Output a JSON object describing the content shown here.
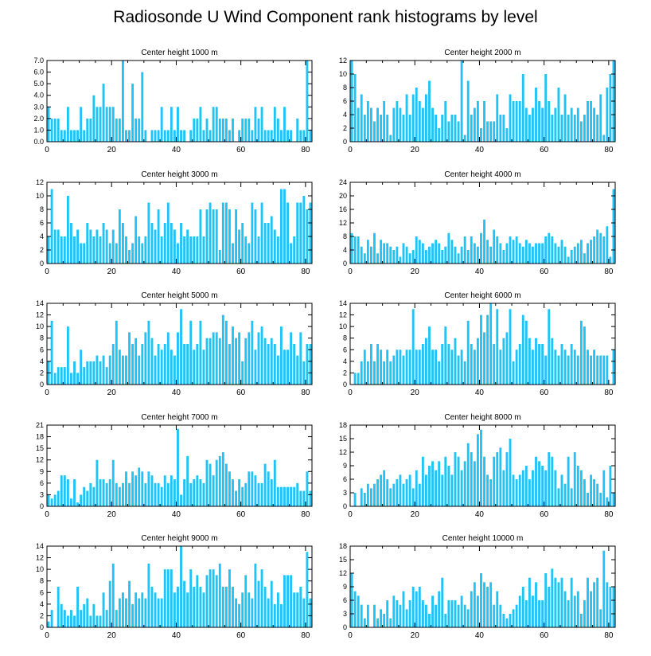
{
  "title": "Radiosonde U Wind Component rank histograms by level",
  "colors": {
    "bar": "#1ec3f7",
    "axis": "#000000"
  },
  "chart_data": [
    {
      "type": "bar",
      "title": "Center height 1000 m",
      "ylim": [
        0,
        7
      ],
      "yticks": [
        "0.0",
        "1.0",
        "2.0",
        "3.0",
        "4.0",
        "5.0",
        "6.0",
        "7.0"
      ],
      "yaxis_side": "left",
      "xlim": [
        0,
        82
      ],
      "xticks": [
        0,
        20,
        40,
        60,
        80
      ],
      "values": [
        3,
        2,
        2,
        2,
        1,
        1,
        3,
        1,
        1,
        1,
        3,
        1,
        2,
        2,
        4,
        3,
        3,
        5,
        3,
        3,
        3,
        2,
        2,
        7,
        1,
        1,
        5,
        2,
        2,
        6,
        1,
        0,
        1,
        1,
        1,
        3,
        1,
        1,
        3,
        1,
        3,
        1,
        1,
        0,
        1,
        2,
        2,
        3,
        1,
        2,
        1,
        3,
        3,
        2,
        2,
        2,
        1,
        2,
        0,
        1,
        2,
        2,
        2,
        1,
        3,
        2,
        3,
        1,
        1,
        1,
        3,
        2,
        1,
        3,
        1,
        1,
        0,
        2,
        1,
        1,
        7,
        1
      ]
    },
    {
      "type": "bar",
      "title": "Center height 2000 m",
      "ylim": [
        0,
        12
      ],
      "yticks": [
        "0",
        "2",
        "4",
        "6",
        "8",
        "10",
        "12"
      ],
      "yaxis_side": "right",
      "xlim": [
        0,
        82
      ],
      "xticks": [
        0,
        20,
        40,
        60,
        80
      ],
      "values": [
        12,
        10,
        5,
        7,
        4,
        6,
        5,
        3,
        5,
        4,
        6,
        4,
        1,
        5,
        6,
        5,
        4,
        7,
        4,
        7,
        8,
        6,
        5,
        7,
        9,
        5,
        4,
        2,
        4,
        6,
        3,
        4,
        4,
        3,
        12,
        1,
        9,
        4,
        5,
        6,
        2,
        6,
        3,
        3,
        3,
        7,
        4,
        4,
        2,
        7,
        6,
        6,
        6,
        10,
        5,
        4,
        5,
        8,
        6,
        5,
        10,
        6,
        4,
        5,
        8,
        4,
        7,
        4,
        5,
        4,
        5,
        3,
        4,
        6,
        6,
        5,
        4,
        7,
        1,
        8,
        10,
        12
      ]
    },
    {
      "type": "bar",
      "title": "Center height 3000 m",
      "ylim": [
        0,
        12
      ],
      "yticks": [
        "0",
        "2",
        "4",
        "6",
        "8",
        "10",
        "12"
      ],
      "yaxis_side": "left",
      "xlim": [
        0,
        82
      ],
      "xticks": [
        0,
        20,
        40,
        60,
        80
      ],
      "values": [
        4,
        11,
        5,
        5,
        4,
        4,
        10,
        6,
        4,
        5,
        3,
        3,
        6,
        5,
        4,
        5,
        4,
        6,
        5,
        3,
        5,
        3,
        8,
        6,
        4,
        2,
        3,
        7,
        4,
        3,
        4,
        9,
        6,
        5,
        8,
        4,
        6,
        9,
        6,
        5,
        3,
        6,
        4,
        5,
        4,
        4,
        4,
        8,
        4,
        8,
        9,
        8,
        8,
        2,
        9,
        9,
        8,
        3,
        8,
        5,
        6,
        4,
        3,
        9,
        8,
        4,
        9,
        6,
        6,
        7,
        5,
        4,
        11,
        11,
        9,
        3,
        4,
        9,
        9,
        10,
        8,
        9
      ]
    },
    {
      "type": "bar",
      "title": "Center height 4000 m",
      "ylim": [
        0,
        24
      ],
      "yticks": [
        "0",
        "4",
        "8",
        "12",
        "16",
        "20",
        "24"
      ],
      "yaxis_side": "right",
      "xlim": [
        0,
        82
      ],
      "xticks": [
        0,
        20,
        40,
        60,
        80
      ],
      "values": [
        9,
        8,
        8,
        5,
        3,
        7,
        5,
        9,
        3,
        7,
        6,
        6,
        5,
        4,
        5,
        2,
        6,
        5,
        3,
        4,
        8,
        7,
        6,
        4,
        5,
        6,
        7,
        6,
        4,
        5,
        9,
        7,
        5,
        3,
        5,
        8,
        4,
        8,
        6,
        5,
        9,
        13,
        7,
        5,
        10,
        8,
        6,
        4,
        6,
        8,
        7,
        8,
        6,
        5,
        7,
        6,
        5,
        6,
        6,
        6,
        8,
        9,
        8,
        6,
        5,
        7,
        5,
        2,
        4,
        5,
        6,
        7,
        3,
        6,
        7,
        8,
        10,
        9,
        8,
        11,
        2,
        22
      ]
    },
    {
      "type": "bar",
      "title": "Center height 5000 m",
      "ylim": [
        0,
        14
      ],
      "yticks": [
        "0",
        "2",
        "4",
        "6",
        "8",
        "10",
        "12",
        "14"
      ],
      "yaxis_side": "left",
      "xlim": [
        0,
        82
      ],
      "xticks": [
        0,
        20,
        40,
        60,
        80
      ],
      "values": [
        4,
        11,
        2,
        3,
        3,
        3,
        10,
        2,
        4,
        2,
        6,
        3,
        4,
        4,
        4,
        5,
        4,
        5,
        3,
        5,
        7,
        11,
        6,
        5,
        5,
        9,
        7,
        8,
        5,
        7,
        9,
        11,
        8,
        5,
        7,
        6,
        7,
        9,
        6,
        5,
        9,
        13,
        7,
        7,
        11,
        6,
        7,
        11,
        6,
        8,
        8,
        9,
        9,
        8,
        12,
        11,
        7,
        10,
        8,
        9,
        4,
        8,
        9,
        11,
        6,
        9,
        10,
        8,
        7,
        8,
        7,
        5,
        10,
        6,
        6,
        9,
        7,
        5,
        9,
        4,
        7,
        7
      ]
    },
    {
      "type": "bar",
      "title": "Center height 6000 m",
      "ylim": [
        0,
        14
      ],
      "yticks": [
        "0",
        "2",
        "4",
        "6",
        "8",
        "10",
        "12",
        "14"
      ],
      "yaxis_side": "right",
      "xlim": [
        0,
        82
      ],
      "xticks": [
        0,
        20,
        40,
        60,
        80
      ],
      "values": [
        0,
        2,
        2,
        4,
        6,
        4,
        7,
        4,
        7,
        6,
        4,
        6,
        4,
        5,
        6,
        6,
        5,
        6,
        6,
        13,
        6,
        6,
        7,
        8,
        10,
        6,
        6,
        4,
        7,
        10,
        7,
        6,
        8,
        5,
        6,
        4,
        11,
        7,
        6,
        8,
        12,
        9,
        12,
        14,
        7,
        13,
        6,
        8,
        9,
        13,
        4,
        6,
        7,
        12,
        11,
        8,
        6,
        8,
        7,
        7,
        5,
        13,
        8,
        6,
        5,
        7,
        6,
        5,
        7,
        6,
        5,
        11,
        10,
        6,
        5,
        6,
        5,
        5,
        5,
        5,
        0,
        6
      ]
    },
    {
      "type": "bar",
      "title": "Center height 7000 m",
      "ylim": [
        0,
        21
      ],
      "yticks": [
        "0",
        "3",
        "6",
        "9",
        "12",
        "15",
        "18",
        "21"
      ],
      "yaxis_side": "left",
      "xlim": [
        0,
        82
      ],
      "xticks": [
        0,
        20,
        40,
        60,
        80
      ],
      "values": [
        3,
        2,
        3,
        4,
        8,
        8,
        7,
        2,
        7,
        1,
        3,
        5,
        4,
        6,
        5,
        12,
        7,
        7,
        6,
        7,
        12,
        6,
        5,
        6,
        9,
        6,
        9,
        8,
        10,
        9,
        6,
        9,
        8,
        6,
        6,
        5,
        8,
        6,
        8,
        7,
        20,
        3,
        7,
        13,
        6,
        7,
        8,
        7,
        6,
        12,
        11,
        8,
        12,
        13,
        14,
        11,
        9,
        7,
        4,
        7,
        5,
        6,
        9,
        9,
        8,
        6,
        6,
        11,
        9,
        7,
        12,
        5,
        5,
        5,
        5,
        5,
        5,
        6,
        4,
        4,
        9,
        4
      ]
    },
    {
      "type": "bar",
      "title": "Center height 8000 m",
      "ylim": [
        0,
        18
      ],
      "yticks": [
        "0",
        "3",
        "6",
        "9",
        "12",
        "15",
        "18"
      ],
      "yaxis_side": "right",
      "xlim": [
        0,
        82
      ],
      "xticks": [
        0,
        20,
        40,
        60,
        80
      ],
      "values": [
        0,
        3,
        0,
        4,
        3,
        5,
        4,
        5,
        6,
        7,
        8,
        6,
        4,
        5,
        6,
        7,
        5,
        6,
        7,
        4,
        8,
        5,
        11,
        7,
        9,
        10,
        8,
        10,
        7,
        11,
        9,
        7,
        12,
        11,
        8,
        10,
        14,
        12,
        10,
        16,
        17,
        11,
        7,
        6,
        11,
        12,
        13,
        8,
        12,
        15,
        7,
        6,
        7,
        8,
        9,
        6,
        8,
        11,
        10,
        9,
        8,
        12,
        11,
        8,
        4,
        7,
        5,
        11,
        4,
        12,
        9,
        8,
        6,
        3,
        7,
        6,
        5,
        3,
        8,
        2,
        9,
        3
      ]
    },
    {
      "type": "bar",
      "title": "Center height 9000 m",
      "ylim": [
        0,
        14
      ],
      "yticks": [
        "0",
        "2",
        "4",
        "6",
        "8",
        "10",
        "12",
        "14"
      ],
      "yaxis_side": "left",
      "xlim": [
        0,
        82
      ],
      "xticks": [
        0,
        20,
        40,
        60,
        80
      ],
      "values": [
        1,
        3,
        0,
        7,
        4,
        3,
        2,
        3,
        2,
        7,
        3,
        4,
        5,
        2,
        4,
        2,
        2,
        6,
        3,
        8,
        11,
        3,
        5,
        6,
        5,
        8,
        4,
        6,
        5,
        6,
        5,
        11,
        7,
        6,
        5,
        5,
        10,
        10,
        10,
        6,
        7,
        14,
        8,
        6,
        10,
        7,
        9,
        7,
        6,
        9,
        10,
        10,
        9,
        11,
        7,
        7,
        10,
        7,
        5,
        4,
        6,
        9,
        6,
        5,
        11,
        8,
        10,
        7,
        5,
        8,
        4,
        6,
        4,
        9,
        9,
        9,
        6,
        6,
        7,
        5,
        13,
        5
      ]
    },
    {
      "type": "bar",
      "title": "Center height 10000 m",
      "ylim": [
        0,
        18
      ],
      "yticks": [
        "0",
        "3",
        "6",
        "9",
        "12",
        "15",
        "18"
      ],
      "yaxis_side": "right",
      "xlim": [
        0,
        82
      ],
      "xticks": [
        0,
        20,
        40,
        60,
        80
      ],
      "values": [
        12,
        8,
        7,
        5,
        2,
        5,
        0,
        5,
        2,
        4,
        3,
        6,
        2,
        7,
        6,
        5,
        8,
        4,
        6,
        9,
        8,
        9,
        6,
        5,
        3,
        7,
        5,
        8,
        11,
        3,
        6,
        6,
        6,
        5,
        7,
        5,
        4,
        8,
        10,
        7,
        12,
        10,
        9,
        10,
        5,
        8,
        5,
        3,
        2,
        3,
        4,
        5,
        7,
        9,
        6,
        11,
        7,
        10,
        6,
        6,
        12,
        9,
        13,
        11,
        10,
        11,
        8,
        6,
        11,
        7,
        8,
        3,
        6,
        11,
        8,
        10,
        11,
        4,
        17,
        10,
        9,
        9
      ]
    }
  ]
}
